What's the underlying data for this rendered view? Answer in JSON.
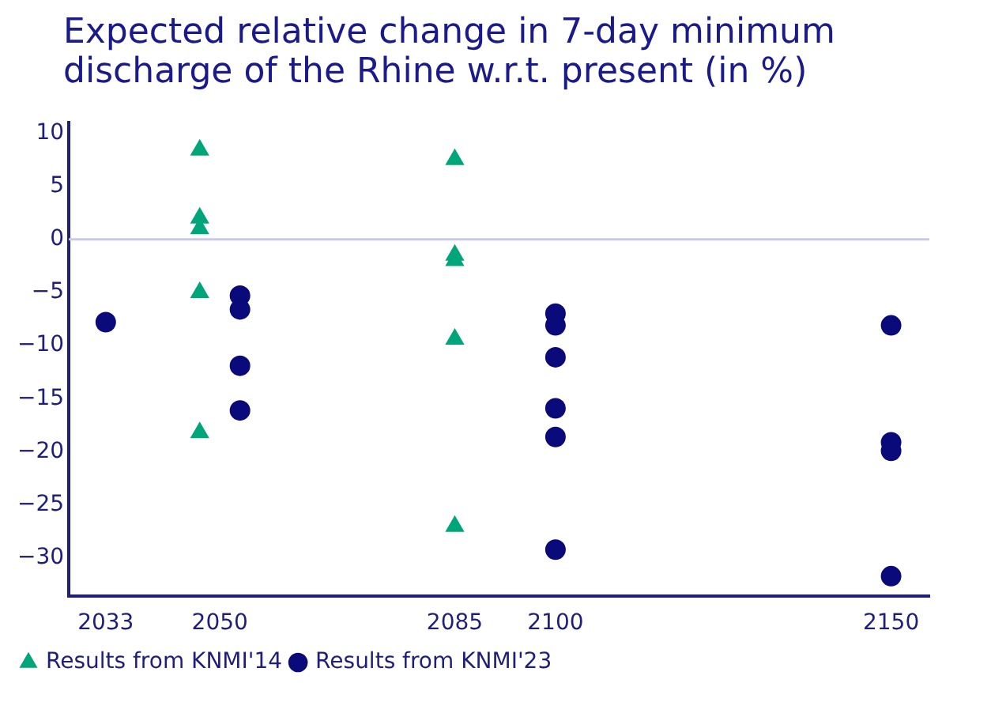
{
  "chart_data": {
    "type": "scatter",
    "title": "Expected relative change in 7-day minimum discharge of the Rhine w.r.t. present (in %)",
    "xlim": [
      2027.5,
      2155.7
    ],
    "xticks": [
      2033,
      2050,
      2085,
      2100,
      2150
    ],
    "ylim": [
      -33.6,
      11
    ],
    "yticks": [
      -30,
      -25,
      -20,
      -15,
      -10,
      -5,
      0,
      5,
      10
    ],
    "grid": false,
    "legend": "bottom left",
    "ref_lines": [
      {
        "axis": "y",
        "value": 0,
        "color": "#c8c8e8"
      }
    ],
    "series": [
      {
        "name": "Results from KNMI'14",
        "color": "#00a57a",
        "marker": "triangle",
        "x": [
          2047,
          2047,
          2047,
          2047,
          2047,
          2085,
          2085,
          2085,
          2085,
          2085
        ],
        "values": [
          8.4,
          2,
          1,
          -5,
          -18.2,
          7.5,
          -1.5,
          -2,
          -9.4,
          -27
        ]
      },
      {
        "name": "Results from KNMI'23",
        "color": "#0a0a7a",
        "marker": "circle",
        "x": [
          2033,
          2053,
          2053,
          2053,
          2053,
          2100,
          2100,
          2100,
          2100,
          2100,
          2100,
          2150,
          2150,
          2150,
          2150
        ],
        "values": [
          -7.8,
          -5.3,
          -6.6,
          -11.9,
          -16.1,
          -7,
          -8.1,
          -11.1,
          -15.9,
          -18.6,
          -29.2,
          -8.1,
          -19.1,
          -19.9,
          -31.7
        ]
      }
    ]
  }
}
